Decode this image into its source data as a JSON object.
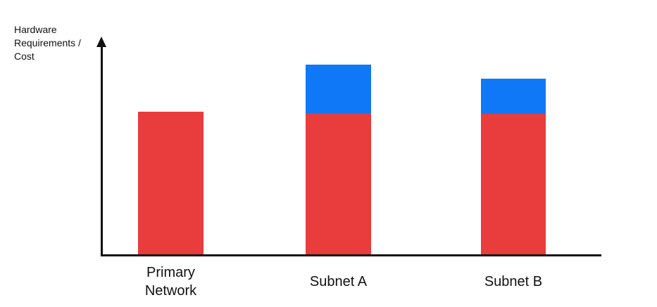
{
  "labels": {
    "ylabel": "Hardware\nRequirements /\nCost"
  },
  "colors": {
    "red": "#E83C3D",
    "blue": "#0F78F6",
    "axis": "#111111",
    "text": "#111111",
    "background": "#FFFFFF"
  },
  "chart_data": {
    "type": "bar",
    "stacked": true,
    "title": "",
    "xlabel": "",
    "ylabel": "Hardware Requirements / Cost",
    "categories": [
      "Primary Network",
      "Subnet A",
      "Subnet B"
    ],
    "series": [
      {
        "name": "red-segment",
        "color": "#E83C3D",
        "values": [
          0.66,
          0.655,
          0.652
        ]
      },
      {
        "name": "blue-segment",
        "color": "#0F78F6",
        "values": [
          0,
          0.225,
          0.163
        ]
      }
    ],
    "ylim": [
      0,
      1
    ],
    "grid": false,
    "legend": "none",
    "axis_arrow": "up",
    "notes": "No numeric tick labels shown; values are relative bar heights as fraction of plot height"
  }
}
